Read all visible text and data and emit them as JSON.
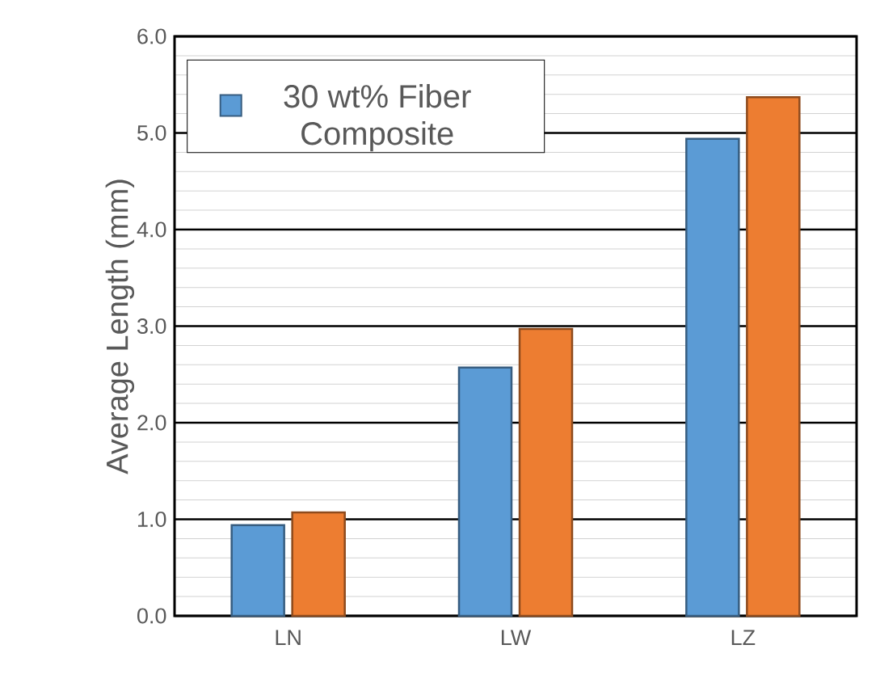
{
  "chart_data": {
    "type": "bar",
    "ylabel": "Average Length (mm)",
    "categories": [
      "LN",
      "LW",
      "LZ"
    ],
    "series": [
      {
        "name": "30 wt% Fiber Composite",
        "color": "#5b9bd5",
        "values": [
          0.94,
          2.57,
          4.94
        ]
      },
      {
        "color": "#ed7d31",
        "values": [
          1.07,
          2.97,
          5.37
        ]
      }
    ],
    "ylim": [
      0,
      6
    ],
    "yticks": [
      {
        "value": 0,
        "label": "0.0"
      },
      {
        "value": 0.2,
        "label": null
      },
      {
        "value": 0.4,
        "label": null
      },
      {
        "value": 0.6,
        "label": null
      },
      {
        "value": 0.8,
        "label": null
      },
      {
        "value": 1,
        "label": "1.0"
      },
      {
        "value": 1.2,
        "label": null
      },
      {
        "value": 1.4,
        "label": null
      },
      {
        "value": 1.6,
        "label": null
      },
      {
        "value": 1.8,
        "label": null
      },
      {
        "value": 2,
        "label": "2.0"
      },
      {
        "value": 2.2,
        "label": null
      },
      {
        "value": 2.4,
        "label": null
      },
      {
        "value": 2.6,
        "label": null
      },
      {
        "value": 2.8,
        "label": null
      },
      {
        "value": 3,
        "label": "3.0"
      },
      {
        "value": 3.2,
        "label": null
      },
      {
        "value": 3.4,
        "label": null
      },
      {
        "value": 3.6,
        "label": null
      },
      {
        "value": 3.8,
        "label": null
      },
      {
        "value": 4,
        "label": "4.0"
      },
      {
        "value": 4.2,
        "label": null
      },
      {
        "value": 4.4,
        "label": null
      },
      {
        "value": 4.6,
        "label": null
      },
      {
        "value": 4.8,
        "label": null
      },
      {
        "value": 5,
        "label": "5.0"
      },
      {
        "value": 5.2,
        "label": null
      },
      {
        "value": 5.4,
        "label": null
      },
      {
        "value": 5.6,
        "label": null
      },
      {
        "value": 5.8,
        "label": null
      },
      {
        "value": 6,
        "label": "6.0"
      }
    ],
    "grid": "y",
    "legend": "top left"
  }
}
